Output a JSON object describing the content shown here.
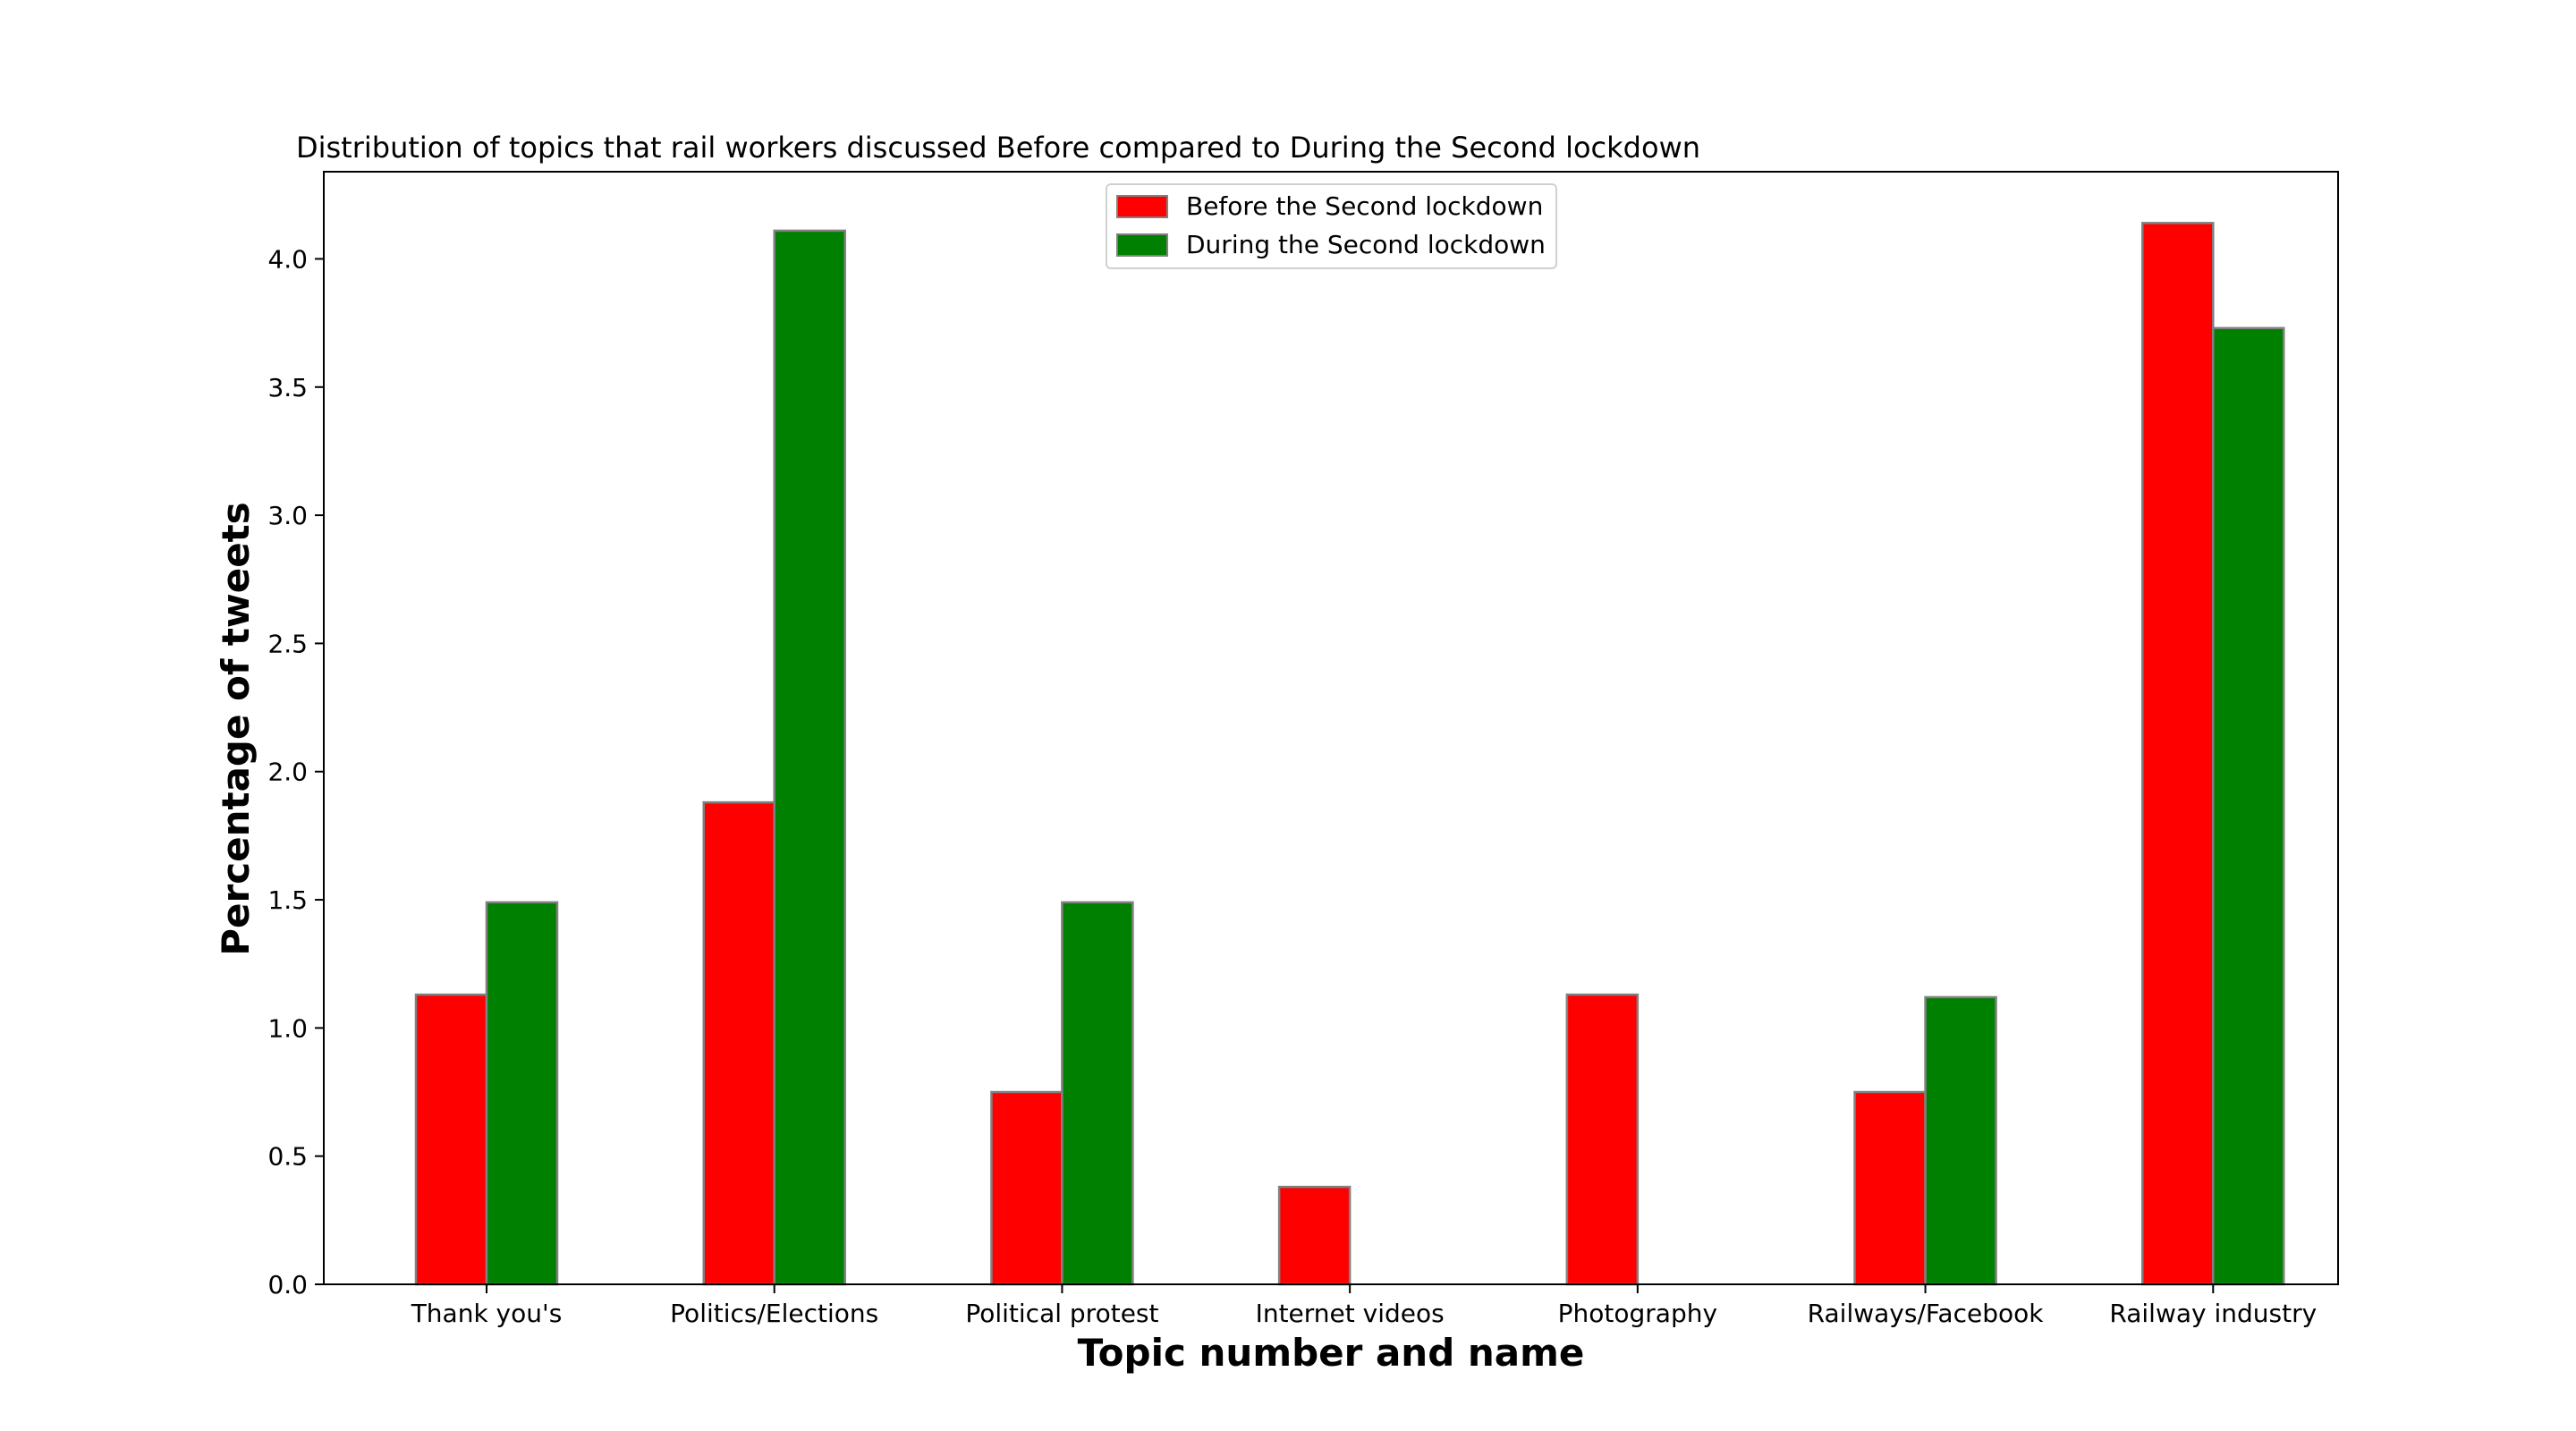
{
  "chart_data": {
    "type": "bar",
    "title": "Distribution of topics that rail workers discussed Before compared to During the Second lockdown",
    "xlabel": "Topic number and name",
    "ylabel": "Percentage of tweets",
    "categories": [
      "Thank you's",
      "Politics/Elections",
      "Political protest",
      "Internet videos",
      "Photography",
      "Railways/Facebook",
      "Railway industry"
    ],
    "series": [
      {
        "name": "Before the Second lockdown",
        "color": "#ff0000",
        "values": [
          1.13,
          1.88,
          0.75,
          0.38,
          1.13,
          0.75,
          4.14
        ]
      },
      {
        "name": "During the Second lockdown",
        "color": "#008000",
        "values": [
          1.49,
          4.11,
          1.49,
          0,
          0,
          1.12,
          3.73
        ]
      }
    ],
    "ylim": [
      0,
      4.34
    ],
    "yticks": [
      "0.0",
      "0.5",
      "1.0",
      "1.5",
      "2.0",
      "2.5",
      "3.0",
      "3.5",
      "4.0"
    ],
    "legend_position": "upper-center",
    "grid": false
  }
}
